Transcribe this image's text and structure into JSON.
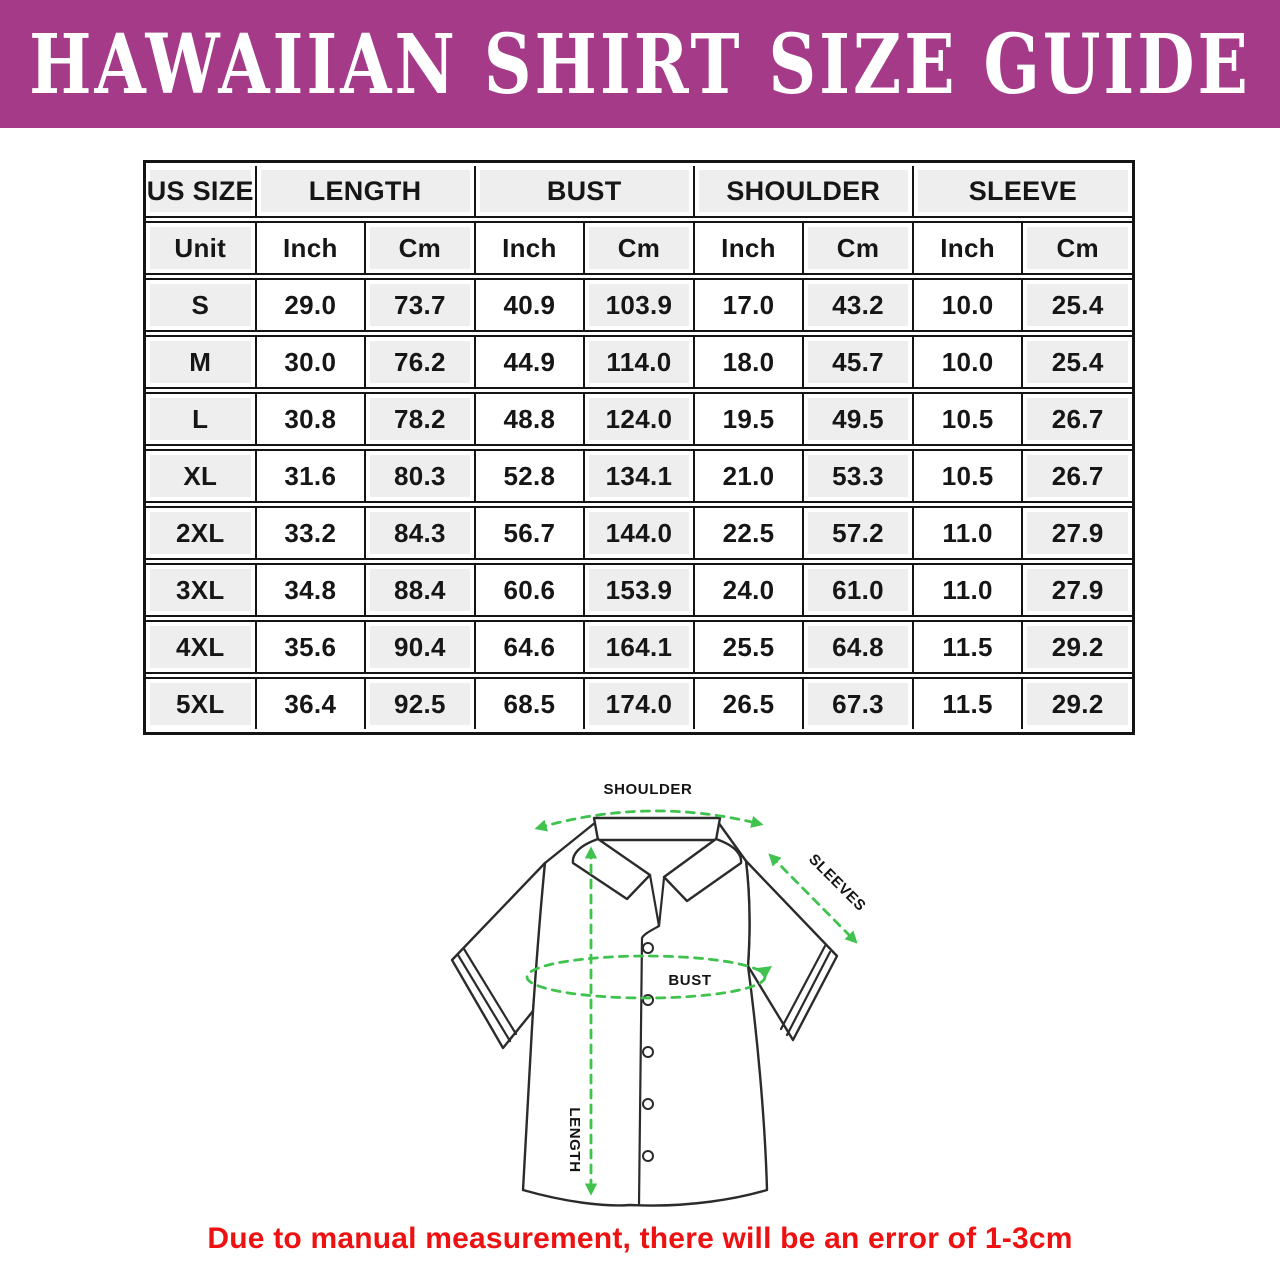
{
  "banner": {
    "title": "HAWAIIAN SHIRT SIZE GUIDE",
    "bg_color": "#a53a88",
    "text_color": "#ffffff"
  },
  "size_table": {
    "column_groups": [
      {
        "label": "US SIZE",
        "span": 1
      },
      {
        "label": "LENGTH",
        "span": 2
      },
      {
        "label": "BUST",
        "span": 2
      },
      {
        "label": "SHOULDER",
        "span": 2
      },
      {
        "label": "SLEEVE",
        "span": 2
      }
    ],
    "unit_row": [
      "Unit",
      "Inch",
      "Cm",
      "Inch",
      "Cm",
      "Inch",
      "Cm",
      "Inch",
      "Cm"
    ],
    "rows": [
      {
        "size": "S",
        "values": [
          "29.0",
          "73.7",
          "40.9",
          "103.9",
          "17.0",
          "43.2",
          "10.0",
          "25.4"
        ]
      },
      {
        "size": "M",
        "values": [
          "30.0",
          "76.2",
          "44.9",
          "114.0",
          "18.0",
          "45.7",
          "10.0",
          "25.4"
        ]
      },
      {
        "size": "L",
        "values": [
          "30.8",
          "78.2",
          "48.8",
          "124.0",
          "19.5",
          "49.5",
          "10.5",
          "26.7"
        ]
      },
      {
        "size": "XL",
        "values": [
          "31.6",
          "80.3",
          "52.8",
          "134.1",
          "21.0",
          "53.3",
          "10.5",
          "26.7"
        ]
      },
      {
        "size": "2XL",
        "values": [
          "33.2",
          "84.3",
          "56.7",
          "144.0",
          "22.5",
          "57.2",
          "11.0",
          "27.9"
        ]
      },
      {
        "size": "3XL",
        "values": [
          "34.8",
          "88.4",
          "60.6",
          "153.9",
          "24.0",
          "61.0",
          "11.0",
          "27.9"
        ]
      },
      {
        "size": "4XL",
        "values": [
          "35.6",
          "90.4",
          "64.6",
          "164.1",
          "25.5",
          "64.8",
          "11.5",
          "29.2"
        ]
      },
      {
        "size": "5XL",
        "values": [
          "36.4",
          "92.5",
          "68.5",
          "174.0",
          "26.5",
          "67.3",
          "11.5",
          "29.2"
        ]
      }
    ]
  },
  "diagram": {
    "labels": {
      "shoulder": "SHOULDER",
      "sleeves": "SLEEVES",
      "bust": "BUST",
      "length": "LENGTH"
    },
    "arrow_color": "#3fc24e"
  },
  "note": {
    "text": "Due to manual measurement, there will be an error of 1-3cm",
    "color": "#ee1111"
  }
}
